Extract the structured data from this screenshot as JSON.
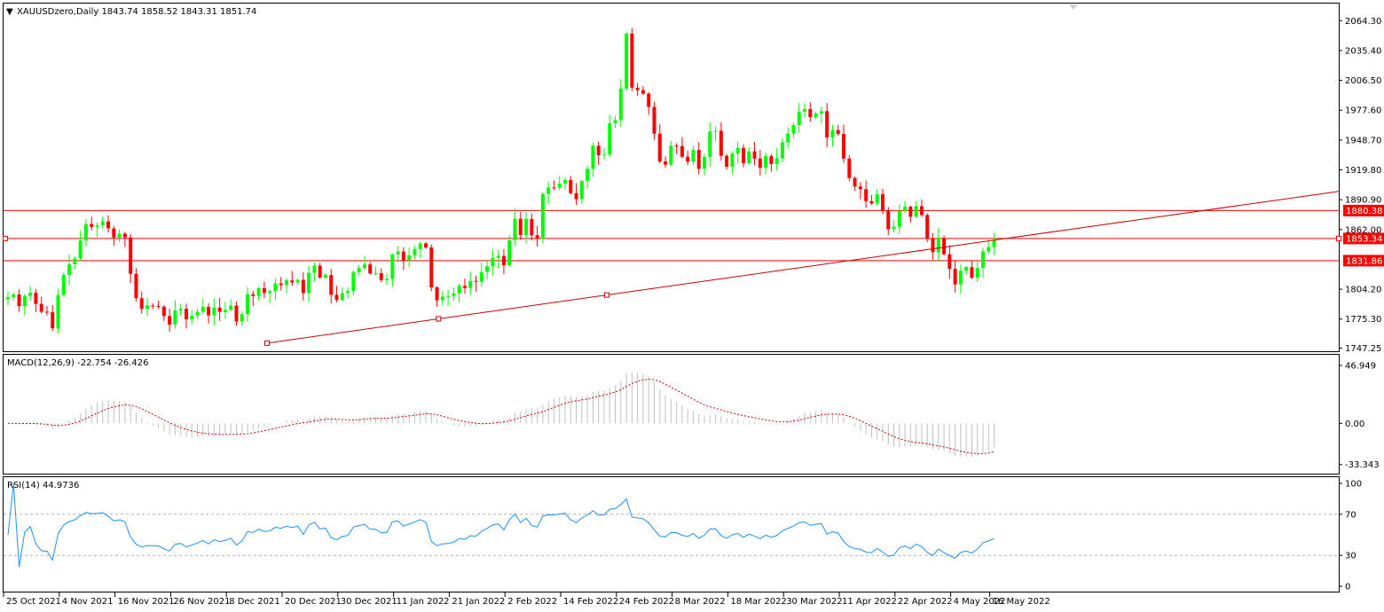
{
  "window": {
    "symbol_header": "XAUUSDzero,Daily  1843.74 1858.52 1843.31 1851.74",
    "scroll_marker": "▼"
  },
  "price_axis": {
    "labels": [
      "2064.30",
      "2035.40",
      "2006.50",
      "1977.60",
      "1948.70",
      "1919.80",
      "1890.90",
      "1862.00",
      "1804.20",
      "1775.30",
      "1747.25"
    ],
    "ylim": [
      1745,
      2080
    ]
  },
  "levels": [
    {
      "label": "1880.38",
      "value": 1880.38
    },
    {
      "label": "1853.34",
      "value": 1853.34
    },
    {
      "label": "1831.86",
      "value": 1831.86
    }
  ],
  "trendline": {
    "start_value": 1752.0,
    "end_value": 1899.0,
    "start_date": "10 Dec 2021"
  },
  "macd": {
    "header": "MACD(12,26,9) -22.754 -26.426",
    "axis_labels": [
      "46.949",
      "0.00",
      "-33.343"
    ],
    "ylim": [
      -40,
      52
    ]
  },
  "rsi": {
    "header": "RSI(14) 44.9736",
    "axis_labels": [
      "100",
      "70",
      "30",
      "0"
    ],
    "levels": [
      70,
      30
    ]
  },
  "date_axis": {
    "labels": [
      "25 Oct 2021",
      "4 Nov 2021",
      "16 Nov 2021",
      "26 Nov 2021",
      "8 Dec 2021",
      "20 Dec 2021",
      "30 Dec 2021",
      "11 Jan 2022",
      "21 Jan 2022",
      "2 Feb 2022",
      "14 Feb 2022",
      "24 Feb 2022",
      "8 Mar 2022",
      "18 Mar 2022",
      "30 Mar 2022",
      "11 Apr 2022",
      "22 Apr 2022",
      "4 May 2022",
      "16 May 2022"
    ]
  },
  "colors": {
    "bull": "#00ff00",
    "bear": "#ff0000",
    "trend": "#cc0000",
    "signal": "#cc0000",
    "rsi_line": "#1e90ff",
    "macd_hist": "#c0c0c0",
    "level_tag": "#ff0000"
  },
  "chart_data": {
    "type": "candlestick",
    "title": "XAUUSDzero,Daily",
    "close": [
      1796.5,
      1799.1,
      1787.8,
      1797.8,
      1800.8,
      1790.0,
      1782.4,
      1781.9,
      1766.3,
      1798.6,
      1817.9,
      1828.4,
      1834.0,
      1851.4,
      1867.3,
      1864.6,
      1866.0,
      1869.8,
      1863.1,
      1854.3,
      1858.0,
      1854.4,
      1819.1,
      1795.5,
      1785.2,
      1788.4,
      1788.0,
      1787.3,
      1778.2,
      1770.0,
      1783.7,
      1785.3,
      1775.0,
      1778.6,
      1782.3,
      1787.1,
      1778.8,
      1786.4,
      1782.2,
      1784.2,
      1788.3,
      1773.0,
      1780.0,
      1799.3,
      1797.6,
      1805.3,
      1800.5,
      1802.3,
      1809.8,
      1808.2,
      1812.7,
      1810.7,
      1813.3,
      1800.5,
      1820.1,
      1827.0,
      1815.5,
      1817.9,
      1798.8,
      1793.8,
      1800.4,
      1802.3,
      1820.8,
      1824.7,
      1828.2,
      1819.4,
      1819.7,
      1813.0,
      1814.2,
      1838.0,
      1840.7,
      1832.3,
      1837.1,
      1843.1,
      1848.5,
      1844.7,
      1806.0,
      1793.4,
      1797.1,
      1797.8,
      1800.2,
      1807.5,
      1805.4,
      1812.2,
      1811.4,
      1820.8,
      1826.4,
      1834.4,
      1836.4,
      1827.5,
      1851.6,
      1872.4,
      1856.7,
      1872.2,
      1856.5,
      1853.0,
      1896.5,
      1902.7,
      1902.4,
      1906.5,
      1910.0,
      1897.2,
      1891.4,
      1909.0,
      1920.8,
      1943.1,
      1933.9,
      1934.6,
      1964.9,
      1967.9,
      1998.6,
      2051.8,
      1999.4,
      1997.0,
      1993.6,
      1980.7,
      1954.8,
      1928.0,
      1924.8,
      1943.3,
      1942.8,
      1932.5,
      1927.8,
      1939.1,
      1920.8,
      1932.3,
      1956.9,
      1957.6,
      1933.4,
      1922.9,
      1935.5,
      1941.0,
      1926.4,
      1937.7,
      1930.8,
      1921.8,
      1933.0,
      1925.5,
      1931.1,
      1946.4,
      1955.0,
      1963.2,
      1976.1,
      1978.7,
      1970.9,
      1974.3,
      1976.7,
      1951.1,
      1958.3,
      1954.6,
      1930.7,
      1911.9,
      1903.7,
      1901.1,
      1889.5,
      1887.2,
      1896.2,
      1880.7,
      1862.2,
      1864.8,
      1880.0,
      1884.1,
      1874.4,
      1884.6,
      1876.0,
      1853.5,
      1840.0,
      1853.8,
      1838.1,
      1824.0,
      1808.8,
      1822.1,
      1825.6,
      1815.4,
      1824.9,
      1840.8,
      1845.0,
      1851.7
    ]
  }
}
